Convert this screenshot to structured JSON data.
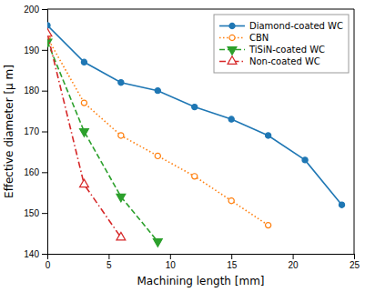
{
  "chart_data": {
    "type": "line",
    "xlabel": "Machining length [mm]",
    "ylabel": "Effective diameter [μ m]",
    "xlim": [
      0,
      25
    ],
    "xticks": [
      0,
      5,
      10,
      15,
      20,
      25
    ],
    "ylim": [
      140,
      200
    ],
    "yticks": [
      140,
      150,
      160,
      170,
      180,
      190,
      200
    ],
    "legend": "upper right",
    "series": [
      {
        "name": "Diamond-coated WC",
        "x": [
          0,
          3,
          6,
          9,
          12,
          15,
          18,
          21,
          24
        ],
        "values": [
          196,
          187,
          182,
          180,
          176,
          173,
          169,
          163,
          152
        ],
        "line_style": "solid",
        "marker": "circle"
      },
      {
        "name": "CBN",
        "x": [
          0,
          3,
          6,
          9,
          12,
          15,
          18
        ],
        "values": [
          193,
          177,
          169,
          164,
          159,
          153,
          147
        ],
        "line_style": "dotted",
        "marker": "circle-open"
      },
      {
        "name": "TiSiN-coated WC",
        "x": [
          0,
          3,
          6,
          9
        ],
        "values": [
          192,
          170,
          154,
          143
        ],
        "line_style": "dashed",
        "marker": "triangle-down"
      },
      {
        "name": "Non-coated WC",
        "x": [
          0,
          3,
          6
        ],
        "values": [
          194,
          157,
          144
        ],
        "line_style": "dash-dot",
        "marker": "triangle-up-open"
      }
    ]
  }
}
